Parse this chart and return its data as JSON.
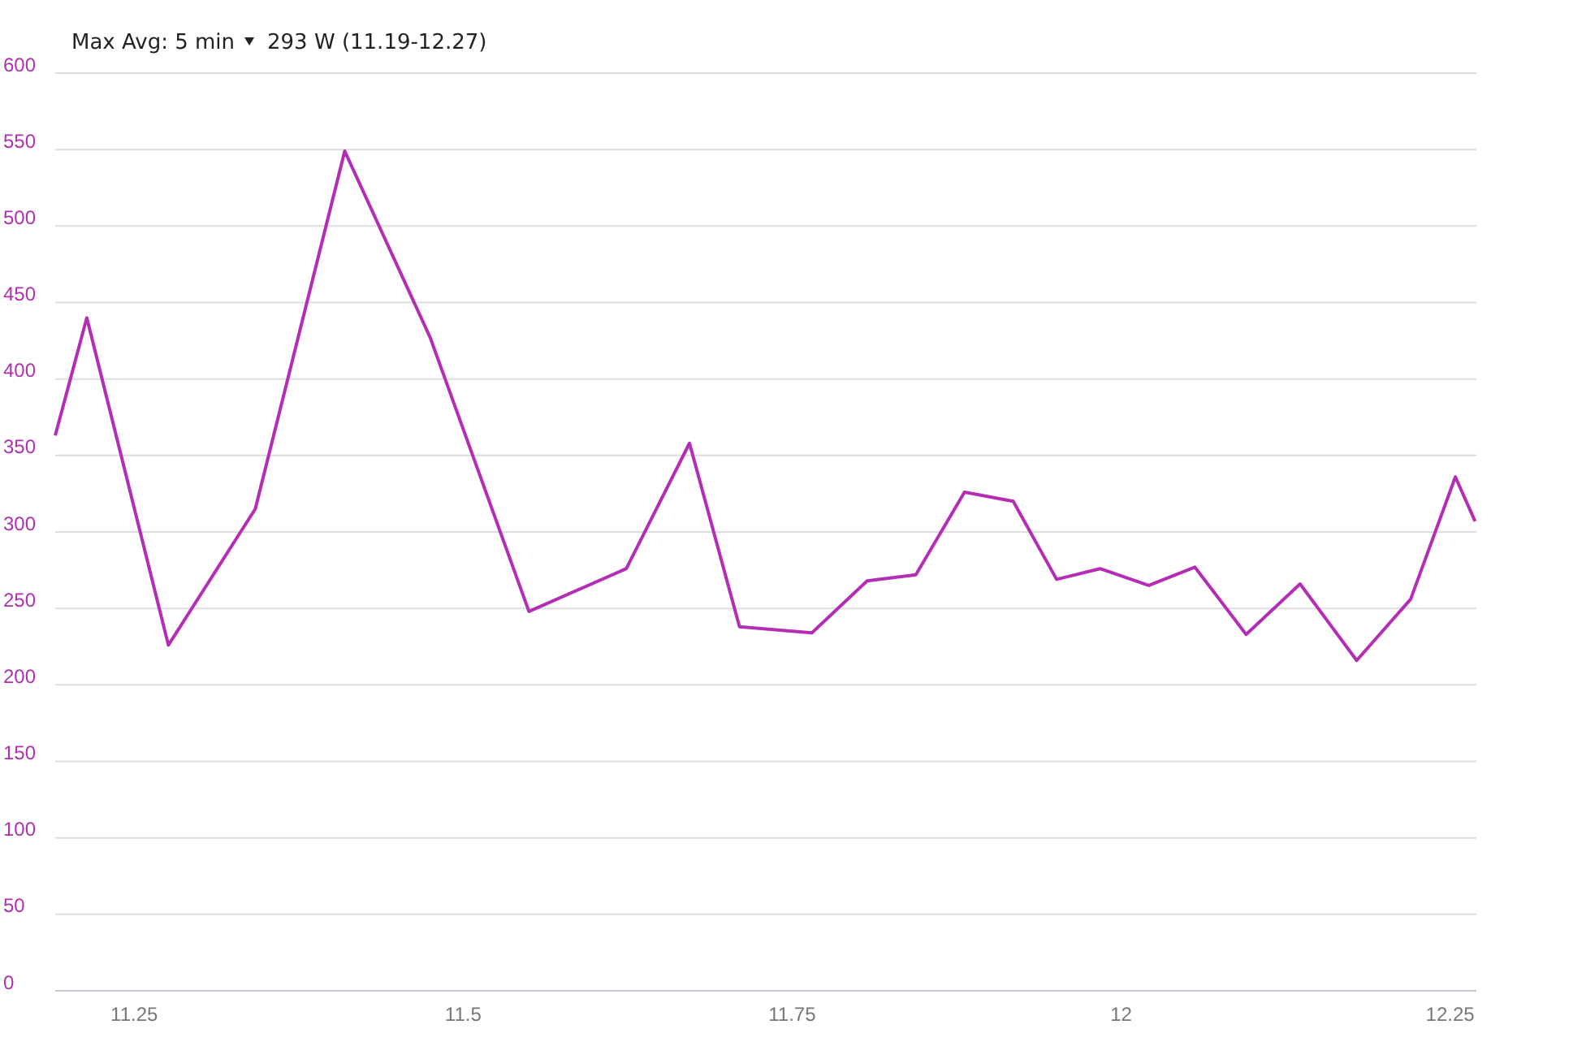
{
  "chart_data": {
    "type": "line",
    "title": "Max Avg: 5 min",
    "subtitle": "293 W (11.19-12.27)",
    "x": [
      11.19,
      11.214,
      11.276,
      11.342,
      11.41,
      11.475,
      11.55,
      11.624,
      11.672,
      11.71,
      11.765,
      11.807,
      11.844,
      11.881,
      11.918,
      11.951,
      11.984,
      12.021,
      12.056,
      12.095,
      12.136,
      12.179,
      12.22,
      12.254,
      12.269
    ],
    "series": [
      {
        "color": "#b52db5",
        "values": [
          363,
          440,
          226,
          315,
          549,
          427,
          248,
          276,
          358,
          238,
          234,
          268,
          272,
          326,
          320,
          269,
          276,
          265,
          277,
          233,
          266,
          216,
          256,
          336,
          307
        ]
      }
    ],
    "xlim": [
      11.19,
      12.27
    ],
    "xticks": [
      11.25,
      11.5,
      11.75,
      12,
      12.25
    ],
    "ylim": [
      0,
      600
    ],
    "yticks": [
      0,
      50,
      100,
      150,
      200,
      250,
      300,
      350,
      400,
      450,
      500,
      550,
      600
    ],
    "grid": "y",
    "marker": "none",
    "line_style": "solid"
  }
}
